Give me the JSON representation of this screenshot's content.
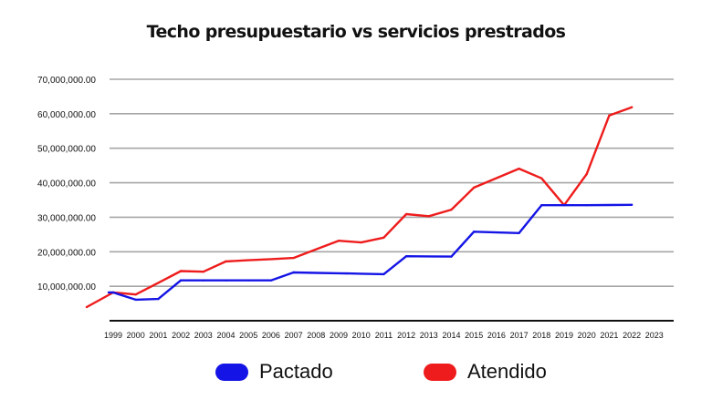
{
  "chart_data": {
    "type": "line",
    "title": "Techo presupuestario vs servicios prestrados",
    "x": [
      "1999",
      "2000",
      "2001",
      "2002",
      "2003",
      "2004",
      "2005",
      "2006",
      "2007",
      "2008",
      "2009",
      "2010",
      "2011",
      "2012",
      "2013",
      "2014",
      "2015",
      "2016",
      "2017",
      "2018",
      "2019",
      "2020",
      "2021",
      "2022",
      "2023"
    ],
    "yticks": [
      "10,000,000.00",
      "20,000,000.00",
      "30,000,000.00",
      "40,000,000.00",
      "50,000,000.00",
      "60,000,000.00",
      "70,000,000.00"
    ],
    "ylim": [
      0,
      70000000
    ],
    "grid": true,
    "legend_position": "bottom",
    "series": [
      {
        "name": "Pactado",
        "color": "#1414e6",
        "values": [
          8200000,
          6100000,
          6300000,
          11700000,
          11700000,
          11700000,
          11700000,
          11700000,
          14000000,
          null,
          null,
          null,
          13500000,
          18700000,
          null,
          18600000,
          25800000,
          null,
          25400000,
          33500000,
          33500000,
          33500000,
          null,
          33600000,
          null
        ]
      },
      {
        "name": "Atendido",
        "color": "#ee1c1c",
        "values": [
          8200000,
          7600000,
          null,
          14400000,
          14200000,
          17200000,
          null,
          null,
          18200000,
          null,
          23200000,
          22700000,
          24100000,
          30900000,
          30300000,
          32200000,
          38600000,
          null,
          44100000,
          41300000,
          33500000,
          42500000,
          59500000,
          61900000,
          null
        ]
      }
    ]
  }
}
